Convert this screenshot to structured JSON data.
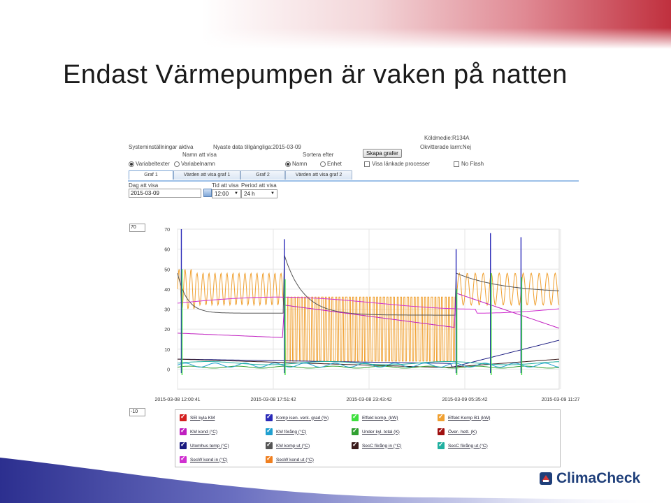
{
  "slide": {
    "title": "Endast Värmepumpen är vaken på natten",
    "logo_text": "ClimaCheck"
  },
  "app": {
    "status": "Systeminställningar aktiva",
    "newest_data": "Nyaste data tillgängliga:2015-03-09",
    "refrigerant": "Köldmedie:R134A",
    "unack_alarms": "Okvitterade larm:Nej",
    "name_label": "Namn att visa",
    "name_options": [
      "Variabeltexter",
      "Variabelnamn"
    ],
    "sort_label": "Sortera efter",
    "sort_options": [
      "Namn",
      "Enhet"
    ],
    "create_button": "Skapa grafer",
    "linked_processes": "Visa länkade processer",
    "no_flash": "No Flash",
    "tabs": [
      "Graf 1",
      "Värden att visa graf 1",
      "Graf 2",
      "Värden att visa graf 2"
    ],
    "day_label": "Dag att visa",
    "day_value": "2015-03-09",
    "time_label": "Tid att visa",
    "time_value": "12:00",
    "period_label": "Period att visa",
    "period_value": "24 h"
  },
  "chart_data": {
    "type": "line",
    "ylim": [
      -10,
      70
    ],
    "y_ticks": [
      0,
      10,
      20,
      30,
      40,
      50,
      60,
      70
    ],
    "y_max_box": "70",
    "y_min_box": "-10",
    "x_tick_labels": [
      "2015-03-08 12:00:41",
      "2015-03-08 17:51:42",
      "2015-03-08 23:43:42",
      "2015-03-09 05:35:42",
      "2015-03-09 11:27"
    ],
    "grid": true,
    "series": [
      {
        "name": "SEI kyla KM",
        "color": "#d42020"
      },
      {
        "name": "Komp isen. verk. grad (%)",
        "color": "#2a2ab8"
      },
      {
        "name": "Effekt komp. (kW)",
        "color": "#3ee03e"
      },
      {
        "name": "Effekt Komp B1 (kW)",
        "color": "#f0a030"
      },
      {
        "name": "KM kond (°C)",
        "color": "#c020c0"
      },
      {
        "name": "KM förång (°C)",
        "color": "#20a0d0"
      },
      {
        "name": "Under kyl. total (K)",
        "color": "#30a030"
      },
      {
        "name": "Över- hett. (K)",
        "color": "#a01010"
      },
      {
        "name": "Utomhus temp (°C)",
        "color": "#1a1a80"
      },
      {
        "name": "KM komp ut (°C)",
        "color": "#555555"
      },
      {
        "name": "SecC förång in (°C)",
        "color": "#3a1a1a"
      },
      {
        "name": "SecC förång ut (°C)",
        "color": "#20b0a0"
      },
      {
        "name": "SecW kond in (°C)",
        "color": "#d030d0"
      },
      {
        "name": "SecW kond ut (°C)",
        "color": "#f08020"
      }
    ]
  }
}
